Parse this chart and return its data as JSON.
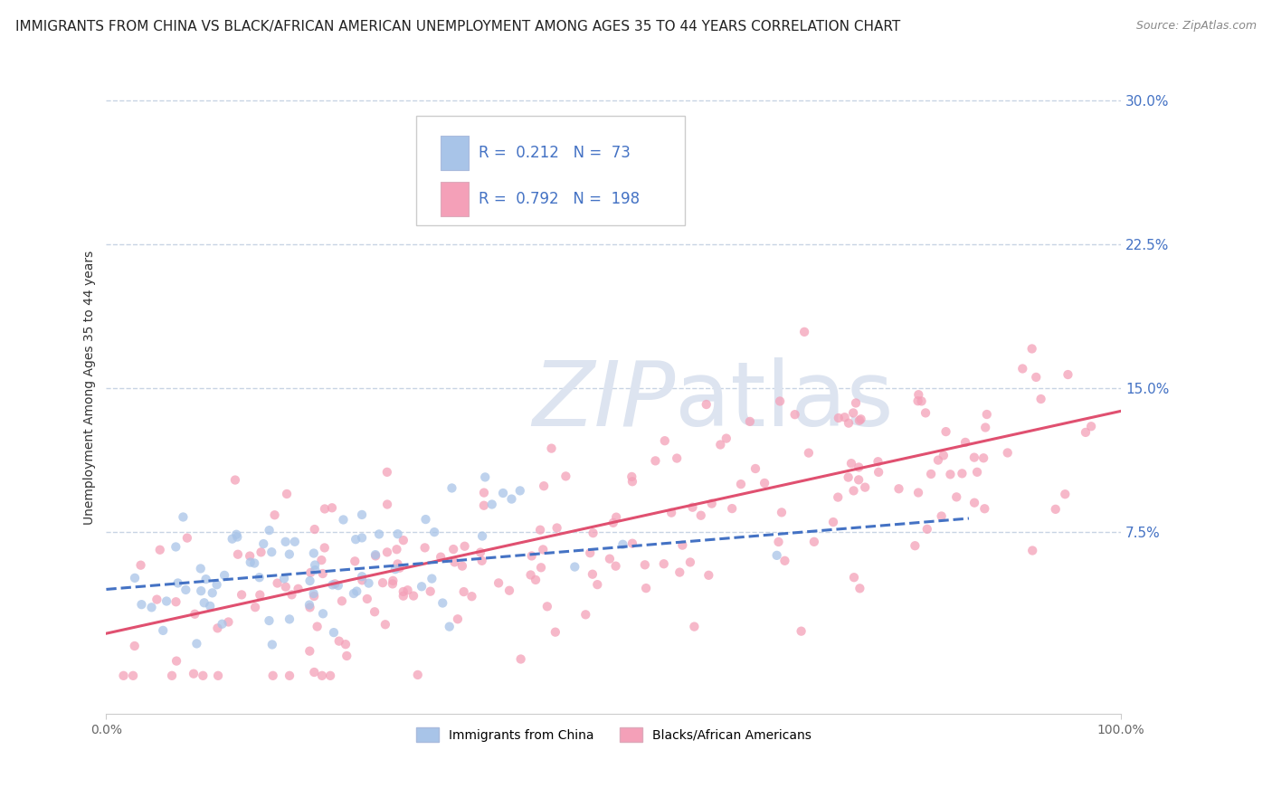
{
  "title": "IMMIGRANTS FROM CHINA VS BLACK/AFRICAN AMERICAN UNEMPLOYMENT AMONG AGES 35 TO 44 YEARS CORRELATION CHART",
  "source": "Source: ZipAtlas.com",
  "ylabel": "Unemployment Among Ages 35 to 44 years",
  "ytick_vals": [
    0.075,
    0.15,
    0.225,
    0.3
  ],
  "ytick_labels": [
    "7.5%",
    "15.0%",
    "22.5%",
    "30.0%"
  ],
  "xlim": [
    0,
    1.0
  ],
  "ylim": [
    -0.02,
    0.32
  ],
  "legend_label1": "Immigrants from China",
  "legend_label2": "Blacks/African Americans",
  "R1": 0.212,
  "N1": 73,
  "R2": 0.792,
  "N2": 198,
  "color1": "#a8c4e8",
  "color2": "#f4a0b8",
  "line1_color": "#4472c4",
  "line2_color": "#e05070",
  "title_fontsize": 11,
  "source_fontsize": 9,
  "ylabel_fontsize": 10,
  "legend_fontsize": 12,
  "tick_fontsize": 10,
  "background_color": "#ffffff",
  "grid_color": "#c8d4e4",
  "seed1": 42,
  "seed2": 123,
  "line1_start_x": 0.0,
  "line1_end_x": 0.85,
  "line1_start_y": 0.045,
  "line1_end_y": 0.082,
  "line2_start_x": 0.0,
  "line2_end_x": 1.0,
  "line2_start_y": 0.022,
  "line2_end_y": 0.138
}
